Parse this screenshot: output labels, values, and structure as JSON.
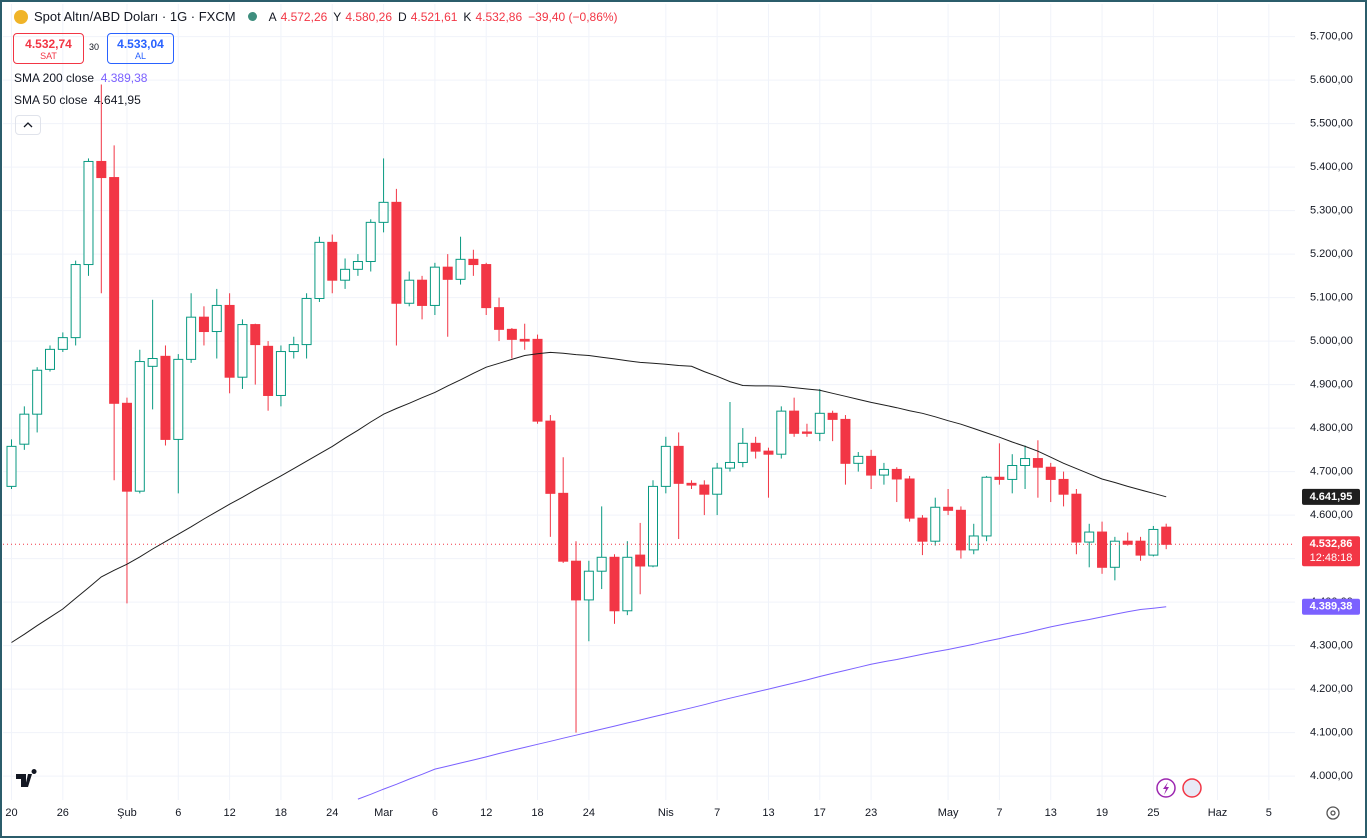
{
  "header": {
    "symbol": "Spot Altın/ABD Doları · 1G · FXCM",
    "ohlc": [
      {
        "key": "A",
        "value": "4.572,26"
      },
      {
        "key": "Y",
        "value": "4.580,26"
      },
      {
        "key": "D",
        "value": "4.521,61"
      },
      {
        "key": "K",
        "value": "4.532,86"
      }
    ],
    "change": "−39,40 (−0,86%)"
  },
  "trade": {
    "sell_price": "4.532,74",
    "sell_label": "SAT",
    "spread": "30",
    "buy_price": "4.533,04",
    "buy_label": "AL"
  },
  "chart_data": {
    "type": "candlestick",
    "categories": [
      "20",
      null,
      null,
      null,
      "26",
      null,
      null,
      null,
      null,
      "Şub",
      null,
      null,
      null,
      "6",
      null,
      null,
      null,
      "12",
      null,
      null,
      null,
      "18",
      null,
      null,
      null,
      "24",
      null,
      null,
      null,
      "Mar",
      null,
      null,
      null,
      "6",
      null,
      null,
      null,
      "12",
      null,
      null,
      null,
      "18",
      null,
      null,
      null,
      "24",
      null,
      null,
      null,
      null,
      null,
      "Nis",
      null,
      null,
      null,
      "7",
      null,
      null,
      null,
      "13",
      null,
      null,
      null,
      "17",
      null,
      null,
      null,
      "23",
      null,
      null,
      null,
      null,
      null,
      "May",
      null,
      null,
      null,
      "7",
      null,
      null,
      null,
      "13",
      null,
      null,
      null,
      "19",
      null,
      null,
      null,
      "25",
      null,
      null,
      null,
      null,
      "Haz",
      null,
      null,
      null,
      "5"
    ],
    "open": [
      4666,
      4763,
      4832,
      4935,
      4981,
      5008,
      5176,
      5413,
      5376,
      4857,
      4655,
      4942,
      4965,
      4774,
      4958,
      5055,
      5022,
      5082,
      4917,
      5038,
      4988,
      4875,
      4976,
      4992,
      5098,
      5227,
      5140,
      5165,
      5183,
      5273,
      5319,
      5087,
      5140,
      5082,
      5170,
      5142,
      5188,
      5176,
      5077,
      5027,
      5004,
      5004,
      4816,
      4650,
      4494,
      4405,
      4471,
      4503,
      4380,
      4508,
      4483,
      4666,
      4758,
      4673,
      4669,
      4648,
      4708,
      4721,
      4765,
      4747,
      4740,
      4839,
      4791,
      4788,
      4834,
      4820,
      4719,
      4735,
      4692,
      4705,
      4683,
      4593,
      4540,
      4618,
      4611,
      4520,
      4552,
      4687,
      4682,
      4714,
      4730,
      4710,
      4682,
      4648,
      4538,
      4561,
      4480,
      4540,
      4540,
      4508,
      4572.26,
      null,
      null,
      null,
      null,
      null,
      null,
      null,
      null
    ],
    "high": [
      4774,
      4850,
      4940,
      4990,
      5020,
      5185,
      5420,
      5590,
      5450,
      4870,
      4980,
      5095,
      4990,
      4970,
      5110,
      5080,
      5120,
      5110,
      5050,
      5040,
      5000,
      4990,
      5010,
      5110,
      5240,
      5245,
      5190,
      5200,
      5280,
      5420,
      5350,
      5160,
      5150,
      5180,
      5200,
      5240,
      5210,
      5180,
      5100,
      5030,
      5040,
      5015,
      4830,
      4733,
      4540,
      4495,
      4620,
      4510,
      4540,
      4582,
      4680,
      4780,
      4790,
      4680,
      4680,
      4720,
      4860,
      4800,
      4780,
      4755,
      4850,
      4870,
      4810,
      4890,
      4840,
      4830,
      4745,
      4750,
      4720,
      4710,
      4690,
      4600,
      4640,
      4660,
      4620,
      4580,
      4690,
      4765,
      4740,
      4760,
      4772,
      4720,
      4700,
      4660,
      4580,
      4585,
      4550,
      4560,
      4550,
      4575,
      4580.26,
      null,
      null,
      null,
      null,
      null,
      null,
      null,
      null
    ],
    "low": [
      4660,
      4750,
      4790,
      4930,
      4975,
      4990,
      5150,
      5110,
      4680,
      4397,
      4650,
      4843,
      4760,
      4650,
      4950,
      4990,
      4960,
      4880,
      4890,
      4900,
      4840,
      4850,
      4960,
      4960,
      5090,
      5110,
      5120,
      5150,
      5160,
      5250,
      4990,
      5080,
      5050,
      5060,
      5010,
      5130,
      5150,
      5060,
      5000,
      4960,
      4980,
      4810,
      4550,
      4490,
      4100,
      4310,
      4430,
      4350,
      4370,
      4418,
      4480,
      4650,
      4545,
      4660,
      4600,
      4600,
      4700,
      4710,
      4730,
      4640,
      4730,
      4780,
      4780,
      4770,
      4770,
      4670,
      4700,
      4660,
      4670,
      4630,
      4585,
      4508,
      4530,
      4600,
      4500,
      4510,
      4540,
      4670,
      4650,
      4660,
      4640,
      4630,
      4620,
      4510,
      4480,
      4465,
      4450,
      4530,
      4495,
      4505,
      4521.61,
      null,
      null,
      null,
      null,
      null,
      null,
      null,
      null
    ],
    "close": [
      4758,
      4832,
      4933,
      4981,
      5008,
      5176,
      5413,
      5376,
      4857,
      4655,
      4953,
      4960,
      4774,
      4958,
      5055,
      5022,
      5082,
      4917,
      5038,
      4992,
      4875,
      4976,
      4992,
      5098,
      5227,
      5140,
      5165,
      5183,
      5273,
      5319,
      5087,
      5140,
      5082,
      5170,
      5142,
      5188,
      5176,
      5077,
      5027,
      5004,
      5000,
      4816,
      4650,
      4494,
      4405,
      4471,
      4503,
      4380,
      4503,
      4483,
      4666,
      4758,
      4673,
      4669,
      4648,
      4708,
      4721,
      4765,
      4747,
      4740,
      4839,
      4788,
      4788,
      4834,
      4820,
      4719,
      4735,
      4692,
      4705,
      4683,
      4593,
      4540,
      4618,
      4611,
      4520,
      4552,
      4687,
      4682,
      4714,
      4730,
      4710,
      4682,
      4648,
      4538,
      4561,
      4480,
      4540,
      4533,
      4508,
      4567,
      4532.86,
      null,
      null,
      null,
      null,
      null,
      null,
      null,
      null
    ],
    "up_color": "#089981",
    "down_color": "#f23645",
    "last_price_label": "4.532,86",
    "countdown": "12:48:18",
    "series": [
      {
        "name": "SMA 200 close",
        "color": "#7b61ff",
        "last_label": "4.389,38",
        "values": [
          null,
          null,
          null,
          null,
          null,
          null,
          null,
          null,
          null,
          null,
          null,
          null,
          null,
          null,
          null,
          null,
          null,
          null,
          null,
          null,
          null,
          null,
          null,
          null,
          null,
          null,
          null,
          3947,
          3958,
          3970,
          3981,
          3993,
          4004,
          4016,
          4023,
          4030,
          4037,
          4044,
          4052,
          4059,
          4066,
          4073,
          4080,
          4087,
          4094,
          4101,
          4108,
          4115,
          4122,
          4129,
          4136,
          4143,
          4150,
          4157,
          4164,
          4172,
          4179,
          4186,
          4193,
          4200,
          4207,
          4214,
          4221,
          4229,
          4236,
          4243,
          4250,
          4257,
          4263,
          4268,
          4274,
          4280,
          4286,
          4291,
          4297,
          4303,
          4310,
          4316,
          4323,
          4329,
          4336,
          4343,
          4349,
          4355,
          4360,
          4366,
          4372,
          4378,
          4383,
          4386,
          4389.38,
          null,
          null,
          null,
          null,
          null,
          null,
          null,
          null
        ]
      },
      {
        "name": "SMA 50 close",
        "color": "#1e1e1e",
        "last_label": "4.641,95",
        "values": [
          4307,
          4326,
          4346,
          4365,
          4384,
          4409,
          4433,
          4458,
          4473,
          4487,
          4504,
          4522,
          4539,
          4556,
          4573,
          4591,
          4608,
          4625,
          4641,
          4658,
          4674,
          4690,
          4707,
          4724,
          4741,
          4758,
          4777,
          4795,
          4814,
          4832,
          4845,
          4857,
          4870,
          4882,
          4897,
          4911,
          4926,
          4940,
          4949,
          4958,
          4967,
          4971,
          4974,
          4972,
          4969,
          4967,
          4963,
          4959,
          4955,
          4951,
          4949,
          4947,
          4944,
          4942,
          4930,
          4919,
          4907,
          4898,
          4897,
          4897,
          4896,
          4893,
          4890,
          4887,
          4880,
          4873,
          4866,
          4859,
          4853,
          4847,
          4840,
          4834,
          4826,
          4817,
          4809,
          4799,
          4789,
          4779,
          4768,
          4758,
          4747,
          4733,
          4719,
          4707,
          4695,
          4683,
          4675,
          4666,
          4658,
          4650,
          4641.95,
          null,
          null,
          null,
          null,
          null,
          null,
          null,
          null
        ]
      }
    ],
    "ylim": [
      3945,
      5775
    ],
    "yticks": [
      {
        "value": 4000,
        "label": "4.000,00"
      },
      {
        "value": 4100,
        "label": "4.100,00"
      },
      {
        "value": 4200,
        "label": "4.200,00"
      },
      {
        "value": 4300,
        "label": "4.300,00"
      },
      {
        "value": 4400,
        "label": "4.400,00"
      },
      {
        "value": 4500,
        "label": "4.500,00"
      },
      {
        "value": 4600,
        "label": "4.600,00"
      },
      {
        "value": 4700,
        "label": "4.700,00"
      },
      {
        "value": 4800,
        "label": "4.800,00"
      },
      {
        "value": 4900,
        "label": "4.900,00"
      },
      {
        "value": 5000,
        "label": "5.000,00"
      },
      {
        "value": 5100,
        "label": "5.100,00"
      },
      {
        "value": 5200,
        "label": "5.200,00"
      },
      {
        "value": 5300,
        "label": "5.300,00"
      },
      {
        "value": 5400,
        "label": "5.400,00"
      },
      {
        "value": 5500,
        "label": "5.500,00"
      },
      {
        "value": 5600,
        "label": "5.600,00"
      },
      {
        "value": 5700,
        "label": "5.700,00"
      }
    ],
    "grid": true
  }
}
